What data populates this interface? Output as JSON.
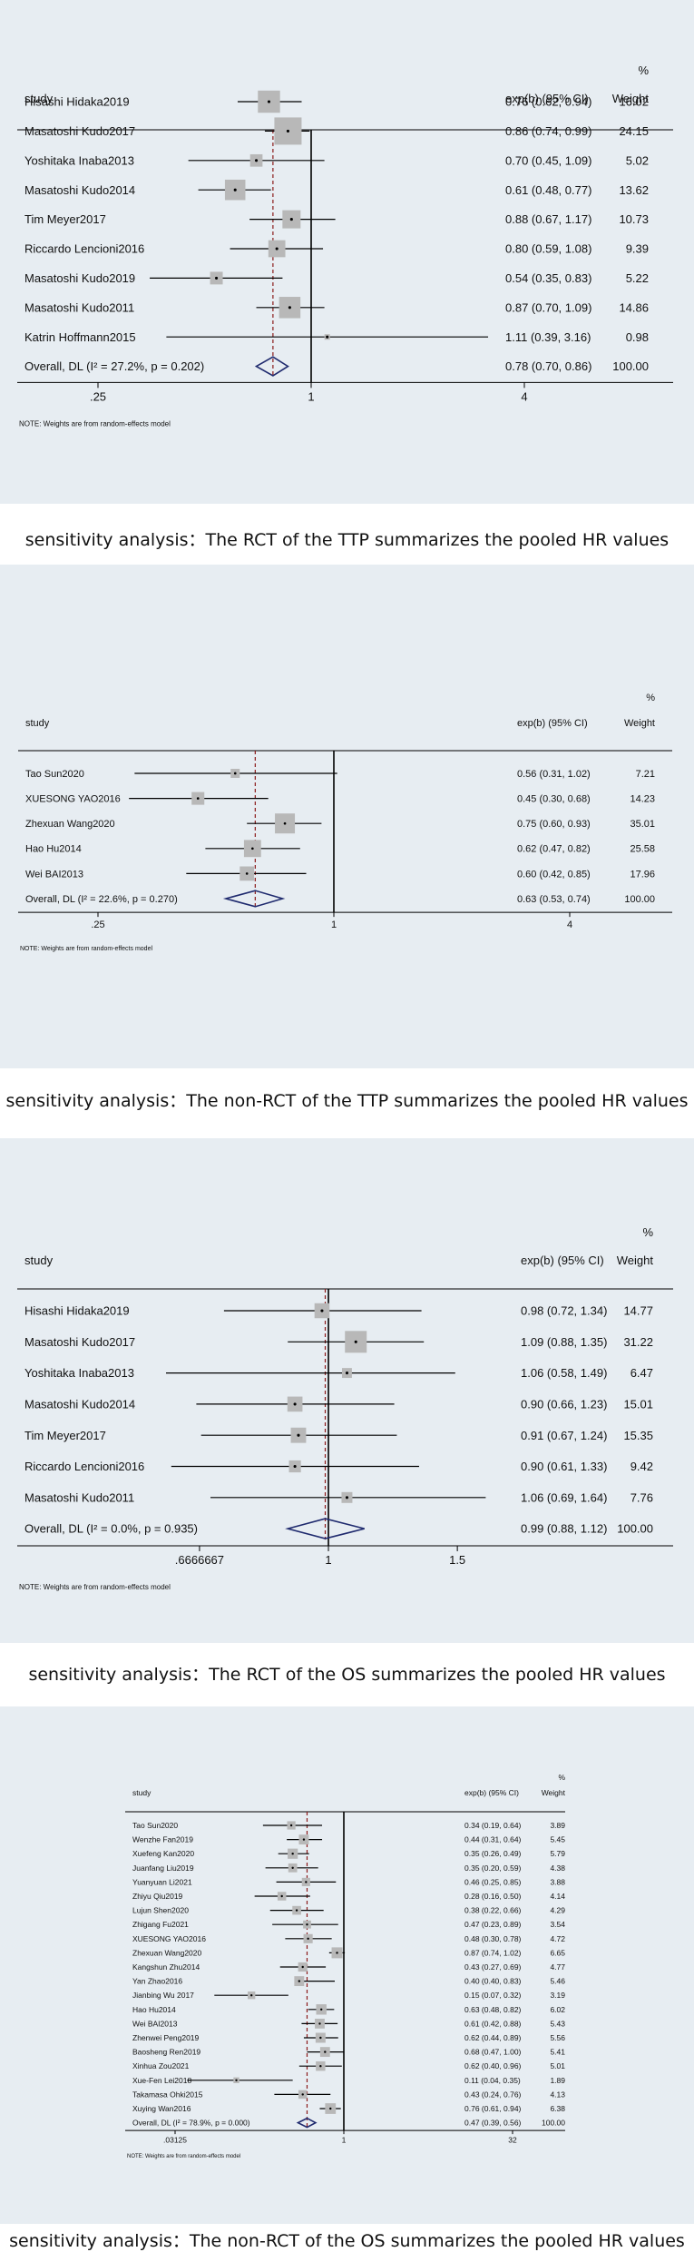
{
  "chart_data": [
    {
      "type": "forest",
      "header": {
        "study": "study",
        "effect": "exp(b) (95% CI)",
        "weight_pct": "%",
        "weight": "Weight"
      },
      "xscale": "log",
      "xlim": [
        0.25,
        4
      ],
      "xticks": [
        "0.25",
        "1",
        "4"
      ],
      "xtick_labels": [
        ".25",
        "1",
        "4"
      ],
      "overall_line": 0.78,
      "studies": [
        {
          "name": "Hisashi Hidaka2019",
          "est": 0.76,
          "lo": 0.62,
          "hi": 0.94,
          "ci_text": "0.76 (0.62, 0.94)",
          "weight": 16.02,
          "weight_text": "16.02"
        },
        {
          "name": "Masatoshi Kudo2017",
          "est": 0.86,
          "lo": 0.74,
          "hi": 0.99,
          "ci_text": "0.86 (0.74, 0.99)",
          "weight": 24.15,
          "weight_text": "24.15"
        },
        {
          "name": "Yoshitaka Inaba2013",
          "est": 0.7,
          "lo": 0.45,
          "hi": 1.09,
          "ci_text": "0.70 (0.45, 1.09)",
          "weight": 5.02,
          "weight_text": "5.02"
        },
        {
          "name": "Masatoshi Kudo2014",
          "est": 0.61,
          "lo": 0.48,
          "hi": 0.77,
          "ci_text": "0.61 (0.48, 0.77)",
          "weight": 13.62,
          "weight_text": "13.62"
        },
        {
          "name": "Tim Meyer2017",
          "est": 0.88,
          "lo": 0.67,
          "hi": 1.17,
          "ci_text": "0.88 (0.67, 1.17)",
          "weight": 10.73,
          "weight_text": "10.73"
        },
        {
          "name": "Riccardo Lencioni2016",
          "est": 0.8,
          "lo": 0.59,
          "hi": 1.08,
          "ci_text": "0.80 (0.59, 1.08)",
          "weight": 9.39,
          "weight_text": "9.39"
        },
        {
          "name": "Masatoshi Kudo2019",
          "est": 0.54,
          "lo": 0.35,
          "hi": 0.83,
          "ci_text": "0.54 (0.35, 0.83)",
          "weight": 5.22,
          "weight_text": "5.22"
        },
        {
          "name": "Masatoshi Kudo2011",
          "est": 0.87,
          "lo": 0.7,
          "hi": 1.09,
          "ci_text": "0.87 (0.70, 1.09)",
          "weight": 14.86,
          "weight_text": "14.86"
        },
        {
          "name": "Katrin Hoffmann2015",
          "est": 1.11,
          "lo": 0.39,
          "hi": 3.16,
          "ci_text": "1.11 (0.39, 3.16)",
          "weight": 0.98,
          "weight_text": "0.98"
        }
      ],
      "overall": {
        "label": "Overall, DL (I² = 27.2%, p = 0.202)",
        "est": 0.78,
        "lo": 0.7,
        "hi": 0.86,
        "ci_text": "0.78 (0.70, 0.86)",
        "weight_text": "100.00"
      },
      "note": "NOTE: Weights are from random-effects model",
      "caption": "sensitivity analysis：The RCT of the TTP summarizes the pooled HR values"
    },
    {
      "type": "forest",
      "header": {
        "study": "study",
        "effect": "exp(b) (95% CI)",
        "weight_pct": "%",
        "weight": "Weight"
      },
      "xscale": "log",
      "xlim": [
        0.25,
        4
      ],
      "xticks": [
        "0.25",
        "1",
        "4"
      ],
      "xtick_labels": [
        ".25",
        "1",
        "4"
      ],
      "overall_line": 0.63,
      "studies": [
        {
          "name": "Tao Sun2020",
          "est": 0.56,
          "lo": 0.31,
          "hi": 1.02,
          "ci_text": "0.56 (0.31, 1.02)",
          "weight": 7.21,
          "weight_text": "7.21"
        },
        {
          "name": "XUESONG YAO2016",
          "est": 0.45,
          "lo": 0.3,
          "hi": 0.68,
          "ci_text": "0.45 (0.30, 0.68)",
          "weight": 14.23,
          "weight_text": "14.23"
        },
        {
          "name": "Zhexuan Wang2020",
          "est": 0.75,
          "lo": 0.6,
          "hi": 0.93,
          "ci_text": "0.75 (0.60, 0.93)",
          "weight": 35.01,
          "weight_text": "35.01"
        },
        {
          "name": "Hao Hu2014",
          "est": 0.62,
          "lo": 0.47,
          "hi": 0.82,
          "ci_text": "0.62 (0.47, 0.82)",
          "weight": 25.58,
          "weight_text": "25.58"
        },
        {
          "name": "Wei BAI2013",
          "est": 0.6,
          "lo": 0.42,
          "hi": 0.85,
          "ci_text": "0.60 (0.42, 0.85)",
          "weight": 17.96,
          "weight_text": "17.96"
        }
      ],
      "overall": {
        "label": "Overall, DL (I² = 22.6%, p = 0.270)",
        "est": 0.63,
        "lo": 0.53,
        "hi": 0.74,
        "ci_text": "0.63 (0.53, 0.74)",
        "weight_text": "100.00"
      },
      "note": "NOTE: Weights are from random-effects model",
      "caption": "sensitivity analysis：The non-RCT of the TTP summarizes the pooled HR values"
    },
    {
      "type": "forest",
      "header": {
        "study": "study",
        "effect": "exp(b) (95% CI)",
        "weight_pct": "%",
        "weight": "Weight"
      },
      "xscale": "log",
      "xlim": [
        0.6,
        1.7
      ],
      "xticks": [
        "0.6666667",
        "1",
        "1.5"
      ],
      "xtick_labels": [
        ".6666667",
        "1",
        "1.5"
      ],
      "overall_line": 0.99,
      "studies": [
        {
          "name": "Hisashi Hidaka2019",
          "est": 0.98,
          "lo": 0.72,
          "hi": 1.34,
          "ci_text": "0.98 (0.72, 1.34)",
          "weight": 14.77,
          "weight_text": "14.77"
        },
        {
          "name": "Masatoshi Kudo2017",
          "est": 1.09,
          "lo": 0.88,
          "hi": 1.35,
          "ci_text": "1.09 (0.88, 1.35)",
          "weight": 31.22,
          "weight_text": "31.22"
        },
        {
          "name": "Yoshitaka Inaba2013",
          "est": 1.06,
          "lo": 0.58,
          "hi": 1.49,
          "ci_text": "1.06 (0.58, 1.49)",
          "weight": 6.47,
          "weight_text": "6.47"
        },
        {
          "name": "Masatoshi Kudo2014",
          "est": 0.9,
          "lo": 0.66,
          "hi": 1.23,
          "ci_text": "0.90 (0.66, 1.23)",
          "weight": 15.01,
          "weight_text": "15.01"
        },
        {
          "name": "Tim Meyer2017",
          "est": 0.91,
          "lo": 0.67,
          "hi": 1.24,
          "ci_text": "0.91 (0.67, 1.24)",
          "weight": 15.35,
          "weight_text": "15.35"
        },
        {
          "name": "Riccardo Lencioni2016",
          "est": 0.9,
          "lo": 0.61,
          "hi": 1.33,
          "ci_text": "0.90 (0.61, 1.33)",
          "weight": 9.42,
          "weight_text": "9.42"
        },
        {
          "name": "Masatoshi Kudo2011",
          "est": 1.06,
          "lo": 0.69,
          "hi": 1.64,
          "ci_text": "1.06 (0.69, 1.64)",
          "weight": 7.76,
          "weight_text": "7.76"
        }
      ],
      "overall": {
        "label": "Overall, DL (I² = 0.0%, p = 0.935)",
        "est": 0.99,
        "lo": 0.88,
        "hi": 1.12,
        "ci_text": "0.99 (0.88, 1.12)",
        "weight_text": "100.00"
      },
      "note": "NOTE: Weights are from random-effects model",
      "caption": "sensitivity analysis：The RCT of the OS summarizes the pooled HR values"
    },
    {
      "type": "forest",
      "header": {
        "study": "study",
        "effect": "exp(b) (95% CI)",
        "weight_pct": "%",
        "weight": "Weight"
      },
      "xscale": "log",
      "xlim": [
        0.03125,
        32
      ],
      "xticks": [
        "0.03125",
        "1",
        "32"
      ],
      "xtick_labels": [
        ".03125",
        "1",
        "32"
      ],
      "overall_line": 0.47,
      "studies": [
        {
          "name": "Tao Sun2020",
          "est": 0.34,
          "lo": 0.19,
          "hi": 0.64,
          "ci_text": "0.34 (0.19, 0.64)",
          "weight": 3.89,
          "weight_text": "3.89"
        },
        {
          "name": "Wenzhe Fan2019",
          "est": 0.44,
          "lo": 0.31,
          "hi": 0.64,
          "ci_text": "0.44 (0.31, 0.64)",
          "weight": 5.45,
          "weight_text": "5.45"
        },
        {
          "name": "Xuefeng Kan2020",
          "est": 0.35,
          "lo": 0.26,
          "hi": 0.49,
          "ci_text": "0.35 (0.26, 0.49)",
          "weight": 5.79,
          "weight_text": "5.79"
        },
        {
          "name": "Juanfang Liu2019",
          "est": 0.35,
          "lo": 0.2,
          "hi": 0.59,
          "ci_text": "0.35 (0.20, 0.59)",
          "weight": 4.38,
          "weight_text": "4.38"
        },
        {
          "name": "Yuanyuan Li2021",
          "est": 0.46,
          "lo": 0.25,
          "hi": 0.85,
          "ci_text": "0.46 (0.25, 0.85)",
          "weight": 3.88,
          "weight_text": "3.88"
        },
        {
          "name": "Zhiyu Qiu2019",
          "est": 0.28,
          "lo": 0.16,
          "hi": 0.5,
          "ci_text": "0.28 (0.16, 0.50)",
          "weight": 4.14,
          "weight_text": "4.14"
        },
        {
          "name": "Lujun Shen2020",
          "est": 0.38,
          "lo": 0.22,
          "hi": 0.66,
          "ci_text": "0.38 (0.22, 0.66)",
          "weight": 4.29,
          "weight_text": "4.29"
        },
        {
          "name": "Zhigang Fu2021",
          "est": 0.47,
          "lo": 0.23,
          "hi": 0.89,
          "ci_text": "0.47 (0.23, 0.89)",
          "weight": 3.54,
          "weight_text": "3.54"
        },
        {
          "name": "XUESONG YAO2016",
          "est": 0.48,
          "lo": 0.3,
          "hi": 0.78,
          "ci_text": "0.48 (0.30, 0.78)",
          "weight": 4.72,
          "weight_text": "4.72"
        },
        {
          "name": "Zhexuan Wang2020",
          "est": 0.87,
          "lo": 0.74,
          "hi": 1.02,
          "ci_text": "0.87 (0.74, 1.02)",
          "weight": 6.65,
          "weight_text": "6.65"
        },
        {
          "name": "Kangshun Zhu2014",
          "est": 0.43,
          "lo": 0.27,
          "hi": 0.69,
          "ci_text": "0.43 (0.27, 0.69)",
          "weight": 4.77,
          "weight_text": "4.77"
        },
        {
          "name": "Yan Zhao2016",
          "est": 0.4,
          "lo": 0.4,
          "hi": 0.83,
          "ci_text": "0.40 (0.40, 0.83)",
          "weight": 5.46,
          "weight_text": "5.46"
        },
        {
          "name": "Jianbing Wu 2017",
          "est": 0.15,
          "lo": 0.07,
          "hi": 0.32,
          "ci_text": "0.15 (0.07, 0.32)",
          "weight": 3.19,
          "weight_text": "3.19"
        },
        {
          "name": "Hao Hu2014",
          "est": 0.63,
          "lo": 0.48,
          "hi": 0.82,
          "ci_text": "0.63 (0.48, 0.82)",
          "weight": 6.02,
          "weight_text": "6.02"
        },
        {
          "name": "Wei BAI2013",
          "est": 0.61,
          "lo": 0.42,
          "hi": 0.88,
          "ci_text": "0.61 (0.42, 0.88)",
          "weight": 5.43,
          "weight_text": "5.43"
        },
        {
          "name": "Zhenwei Peng2019",
          "est": 0.62,
          "lo": 0.44,
          "hi": 0.89,
          "ci_text": "0.62 (0.44, 0.89)",
          "weight": 5.56,
          "weight_text": "5.56"
        },
        {
          "name": "Baosheng Ren2019",
          "est": 0.68,
          "lo": 0.47,
          "hi": 1.0,
          "ci_text": "0.68 (0.47, 1.00)",
          "weight": 5.41,
          "weight_text": "5.41"
        },
        {
          "name": "Xinhua Zou2021",
          "est": 0.62,
          "lo": 0.4,
          "hi": 0.96,
          "ci_text": "0.62 (0.40, 0.96)",
          "weight": 5.01,
          "weight_text": "5.01"
        },
        {
          "name": "Xue-Fen Lei2018",
          "est": 0.11,
          "lo": 0.04,
          "hi": 0.35,
          "ci_text": "0.11 (0.04, 0.35)",
          "weight": 1.89,
          "weight_text": "1.89"
        },
        {
          "name": "Takamasa Ohki2015",
          "est": 0.43,
          "lo": 0.24,
          "hi": 0.76,
          "ci_text": "0.43 (0.24, 0.76)",
          "weight": 4.13,
          "weight_text": "4.13"
        },
        {
          "name": "Xuying Wan2016",
          "est": 0.76,
          "lo": 0.61,
          "hi": 0.94,
          "ci_text": "0.76 (0.61, 0.94)",
          "weight": 6.38,
          "weight_text": "6.38"
        }
      ],
      "overall": {
        "label": "Overall, DL (I² = 78.9%, p = 0.000)",
        "est": 0.47,
        "lo": 0.39,
        "hi": 0.56,
        "ci_text": "0.47 (0.39, 0.56)",
        "weight_text": "100.00"
      },
      "note": "NOTE: Weights are from random-effects model",
      "caption": "sensitivity analysis：The non-RCT of the OS summarizes the pooled HR values"
    }
  ],
  "colors": {
    "panel_bg": "#e7edf2",
    "box": "#b8b8b8",
    "ci_line": "#000000",
    "overall_line": "#8b1a1a",
    "diamond": "#1f2a6e"
  }
}
